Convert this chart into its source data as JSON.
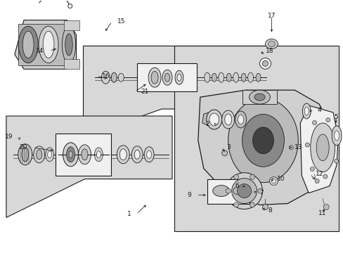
{
  "background_color": "#ffffff",
  "fig_width": 4.89,
  "fig_height": 3.6,
  "dpi": 100,
  "panel_gray": "#d8d8d8",
  "line_color": "#1a1a1a",
  "part_dark": "#404040",
  "part_mid": "#888888",
  "part_light": "#bbbbbb",
  "part_lighter": "#d0d0d0",
  "part_white": "#f0f0f0",
  "font_size": 6.5
}
